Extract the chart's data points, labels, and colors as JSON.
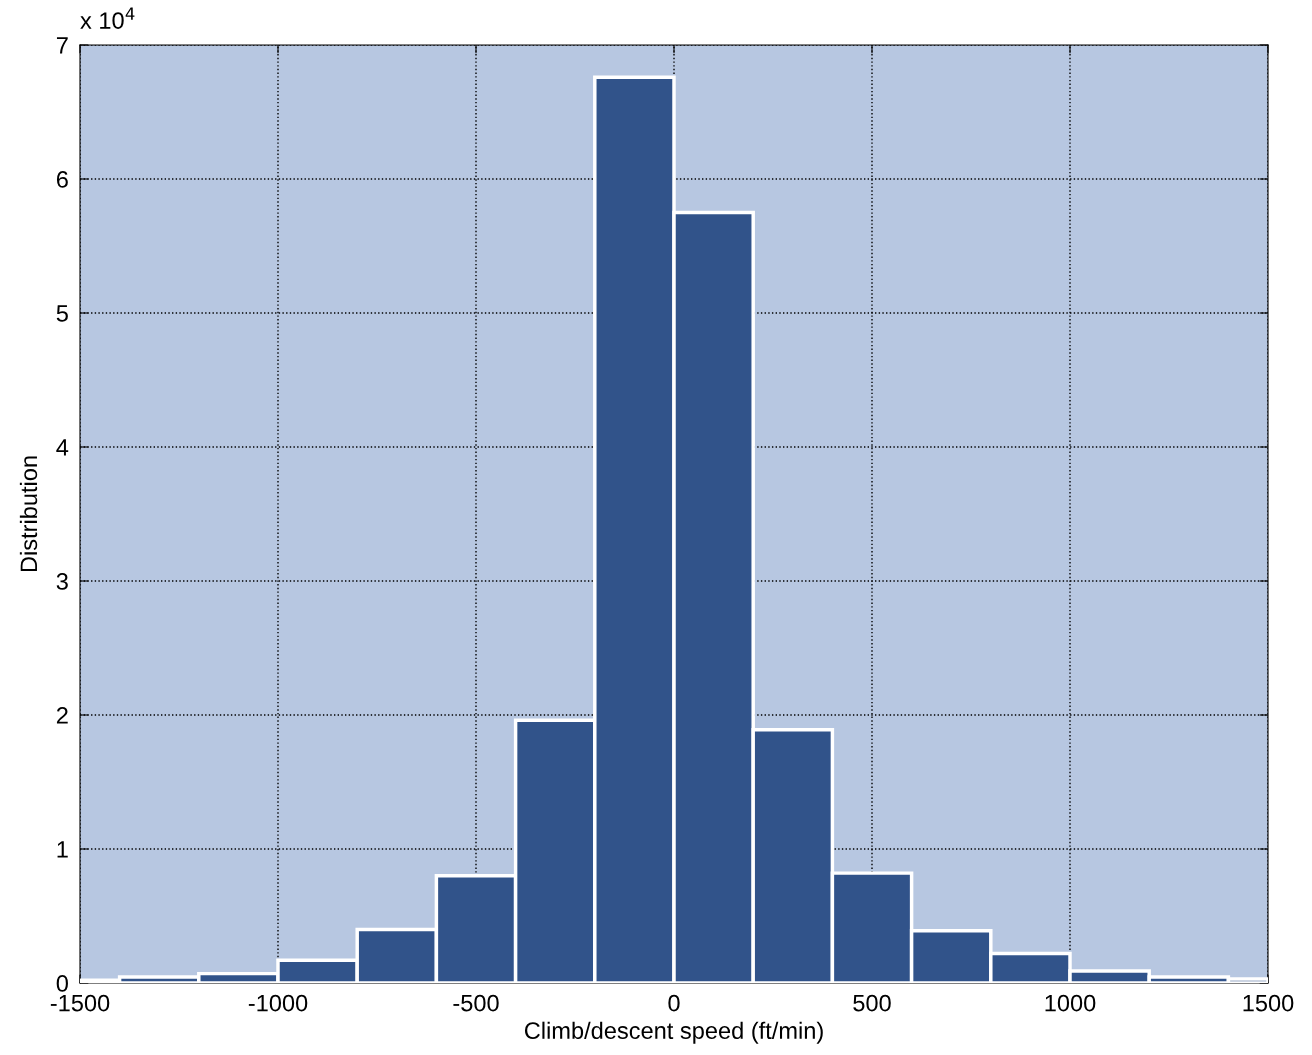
{
  "chart_data": {
    "type": "histogram",
    "xlabel": "Climb/descent speed (ft/min)",
    "ylabel": "Distribution",
    "bins": [
      -1500,
      -1400,
      -1200,
      -1000,
      -800,
      -600,
      -400,
      -200,
      0,
      200,
      400,
      600,
      800,
      1000,
      1200,
      1400,
      1500
    ],
    "values": [
      0.02,
      0.045,
      0.07,
      0.17,
      0.4,
      0.8,
      1.96,
      6.76,
      5.75,
      1.89,
      0.82,
      0.39,
      0.22,
      0.09,
      0.045,
      0.03
    ],
    "color": "#31538a",
    "xlim": [
      -1500,
      1500
    ],
    "xticks": [
      -1500,
      -1000,
      -500,
      0,
      500,
      1000,
      1500
    ],
    "ylim": [
      0,
      7
    ],
    "yticks": [
      0,
      1,
      2,
      3,
      4,
      5,
      6,
      7
    ],
    "annotations": [
      "x 10$^{4}$"
    ],
    "grid": true,
    "line_style": "dotted"
  }
}
